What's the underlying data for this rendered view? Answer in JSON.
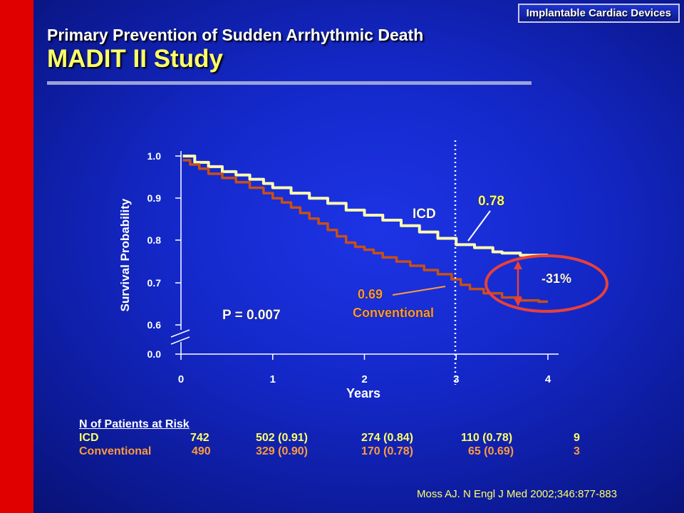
{
  "header": {
    "tag": "Implantable Cardiac Devices"
  },
  "title": {
    "line1": "Primary Prevention of Sudden Arrhythmic Death",
    "line2": "MADIT II Study"
  },
  "chart_data": {
    "type": "line",
    "xlabel": "Years",
    "ylabel": "Survival Probability",
    "x_ticks": [
      "0",
      "1",
      "2",
      "3",
      "4"
    ],
    "y_ticks": [
      "0.0",
      "0.6",
      "0.7",
      "0.8",
      "0.9",
      "1.0"
    ],
    "xlim": [
      0,
      4
    ],
    "ylim": [
      0.55,
      1.0
    ],
    "axis_break": true,
    "series": [
      {
        "name": "ICD",
        "color": "#fffcb0",
        "x": [
          0.02,
          0.15,
          0.3,
          0.45,
          0.6,
          0.75,
          0.9,
          1.0,
          1.2,
          1.4,
          1.6,
          1.8,
          2.0,
          2.2,
          2.4,
          2.6,
          2.8,
          3.0,
          3.2,
          3.4,
          3.5,
          3.7,
          4.0
        ],
        "y": [
          1.0,
          0.985,
          0.975,
          0.963,
          0.955,
          0.945,
          0.935,
          0.925,
          0.912,
          0.9,
          0.888,
          0.872,
          0.86,
          0.848,
          0.835,
          0.82,
          0.805,
          0.79,
          0.783,
          0.773,
          0.77,
          0.765,
          0.765
        ]
      },
      {
        "name": "Conventional",
        "color": "#c85014",
        "x": [
          0.02,
          0.1,
          0.2,
          0.3,
          0.45,
          0.6,
          0.75,
          0.9,
          1.0,
          1.1,
          1.2,
          1.3,
          1.4,
          1.5,
          1.6,
          1.7,
          1.8,
          1.9,
          2.0,
          2.1,
          2.2,
          2.35,
          2.5,
          2.65,
          2.8,
          2.95,
          3.05,
          3.15,
          3.3,
          3.5,
          3.7,
          3.9,
          4.0
        ],
        "y": [
          0.99,
          0.98,
          0.97,
          0.958,
          0.948,
          0.938,
          0.925,
          0.912,
          0.9,
          0.89,
          0.878,
          0.865,
          0.852,
          0.84,
          0.825,
          0.81,
          0.795,
          0.785,
          0.778,
          0.77,
          0.76,
          0.75,
          0.74,
          0.73,
          0.72,
          0.708,
          0.695,
          0.685,
          0.675,
          0.665,
          0.658,
          0.655,
          0.655
        ]
      }
    ],
    "annotations": {
      "icd_label": "ICD",
      "icd_value": "0.78",
      "conv_value": "0.69",
      "conv_label": "Conventional",
      "reduction": "-31%",
      "p_value": "P = 0.007"
    }
  },
  "risk_table": {
    "heading": "N of Patients at Risk",
    "rows": [
      {
        "label": "ICD",
        "values": [
          "742",
          "502 (0.91)",
          "274 (0.84)",
          "110 (0.78)",
          "9"
        ]
      },
      {
        "label": "Conventional",
        "values": [
          "490",
          "329 (0.90)",
          "170 (0.78)",
          "65 (0.69)",
          "3"
        ]
      }
    ]
  },
  "citation": "Moss AJ. N Engl J Med 2002;346:877-883",
  "colors": {
    "accent_red": "#e00000",
    "title_yellow": "#ffff66",
    "ellipse": "#e8403a"
  }
}
